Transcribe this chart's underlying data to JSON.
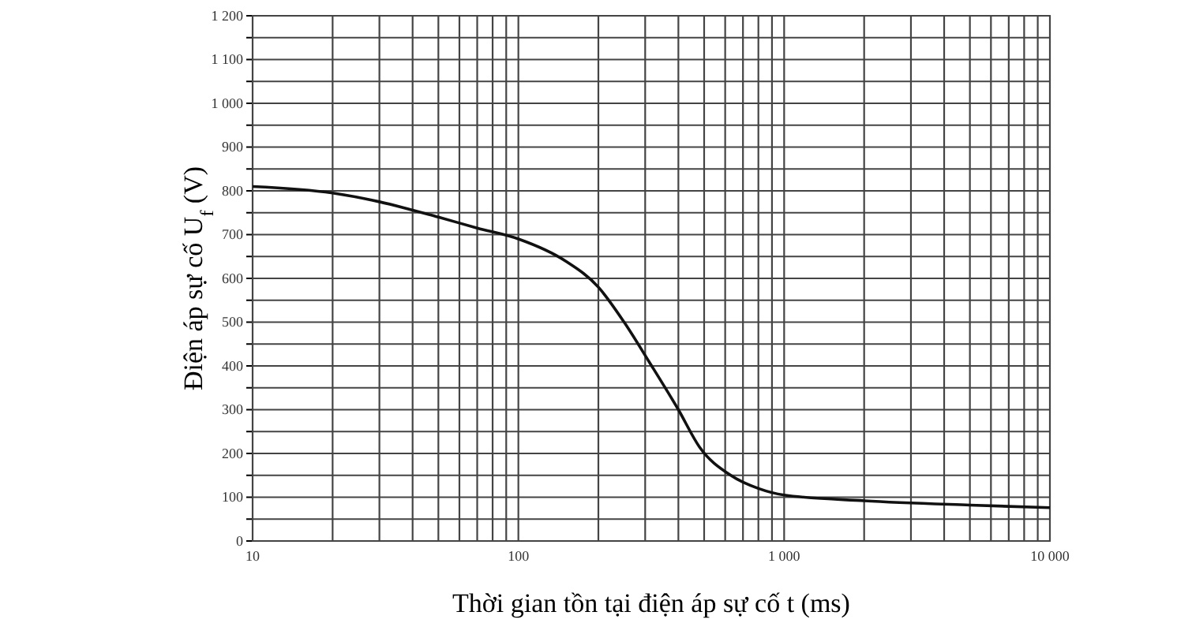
{
  "chart_data": {
    "type": "line",
    "xlabel": "Thời gian tồn tại điện áp sự cố t (ms)",
    "ylabel": "Điện áp sự cố U$_{f}$ (V)",
    "log": "x",
    "grid": true,
    "marker": "none",
    "line_style": "solid",
    "xlim": [
      10,
      10000
    ],
    "ylim": [
      0,
      1200
    ],
    "xticks": [
      10,
      {
        "value": 20,
        "label": null
      },
      {
        "value": 30,
        "label": null
      },
      {
        "value": 40,
        "label": null
      },
      {
        "value": 50,
        "label": null
      },
      {
        "value": 60,
        "label": null
      },
      {
        "value": 70,
        "label": null
      },
      {
        "value": 80,
        "label": null
      },
      {
        "value": 90,
        "label": null
      },
      100,
      {
        "value": 200,
        "label": null
      },
      {
        "value": 300,
        "label": null
      },
      {
        "value": 400,
        "label": null
      },
      {
        "value": 500,
        "label": null
      },
      {
        "value": 600,
        "label": null
      },
      {
        "value": 700,
        "label": null
      },
      {
        "value": 800,
        "label": null
      },
      {
        "value": 900,
        "label": null
      },
      {
        "value": 1000,
        "label": "1 000"
      },
      {
        "value": 2000,
        "label": null
      },
      {
        "value": 3000,
        "label": null
      },
      {
        "value": 4000,
        "label": null
      },
      {
        "value": 5000,
        "label": null
      },
      {
        "value": 6000,
        "label": null
      },
      {
        "value": 7000,
        "label": null
      },
      {
        "value": 8000,
        "label": null
      },
      {
        "value": 9000,
        "label": null
      },
      {
        "value": 10000,
        "label": "10 000"
      }
    ],
    "yticks": [
      0,
      {
        "value": 50,
        "label": null
      },
      100,
      {
        "value": 150,
        "label": null
      },
      200,
      {
        "value": 250,
        "label": null
      },
      300,
      {
        "value": 350,
        "label": null
      },
      400,
      {
        "value": 450,
        "label": null
      },
      500,
      {
        "value": 550,
        "label": null
      },
      600,
      {
        "value": 650,
        "label": null
      },
      700,
      {
        "value": 750,
        "label": null
      },
      800,
      {
        "value": 850,
        "label": null
      },
      900,
      {
        "value": 950,
        "label": null
      },
      {
        "value": 1000,
        "label": "1 000"
      },
      {
        "value": 1050,
        "label": null
      },
      {
        "value": 1100,
        "label": "1 100"
      },
      {
        "value": 1150,
        "label": null
      },
      {
        "value": 1200,
        "label": "1 200"
      }
    ],
    "series": [
      {
        "color": "#111111",
        "x": [
          10,
          20,
          30,
          50,
          70,
          100,
          150,
          200,
          250,
          310,
          400,
          480,
          630,
          800,
          1000,
          2000,
          5000,
          10000
        ],
        "values": [
          810,
          795,
          775,
          740,
          715,
          690,
          640,
          580,
          500,
          410,
          300,
          215,
          150,
          120,
          105,
          92,
          82,
          76
        ]
      }
    ]
  }
}
